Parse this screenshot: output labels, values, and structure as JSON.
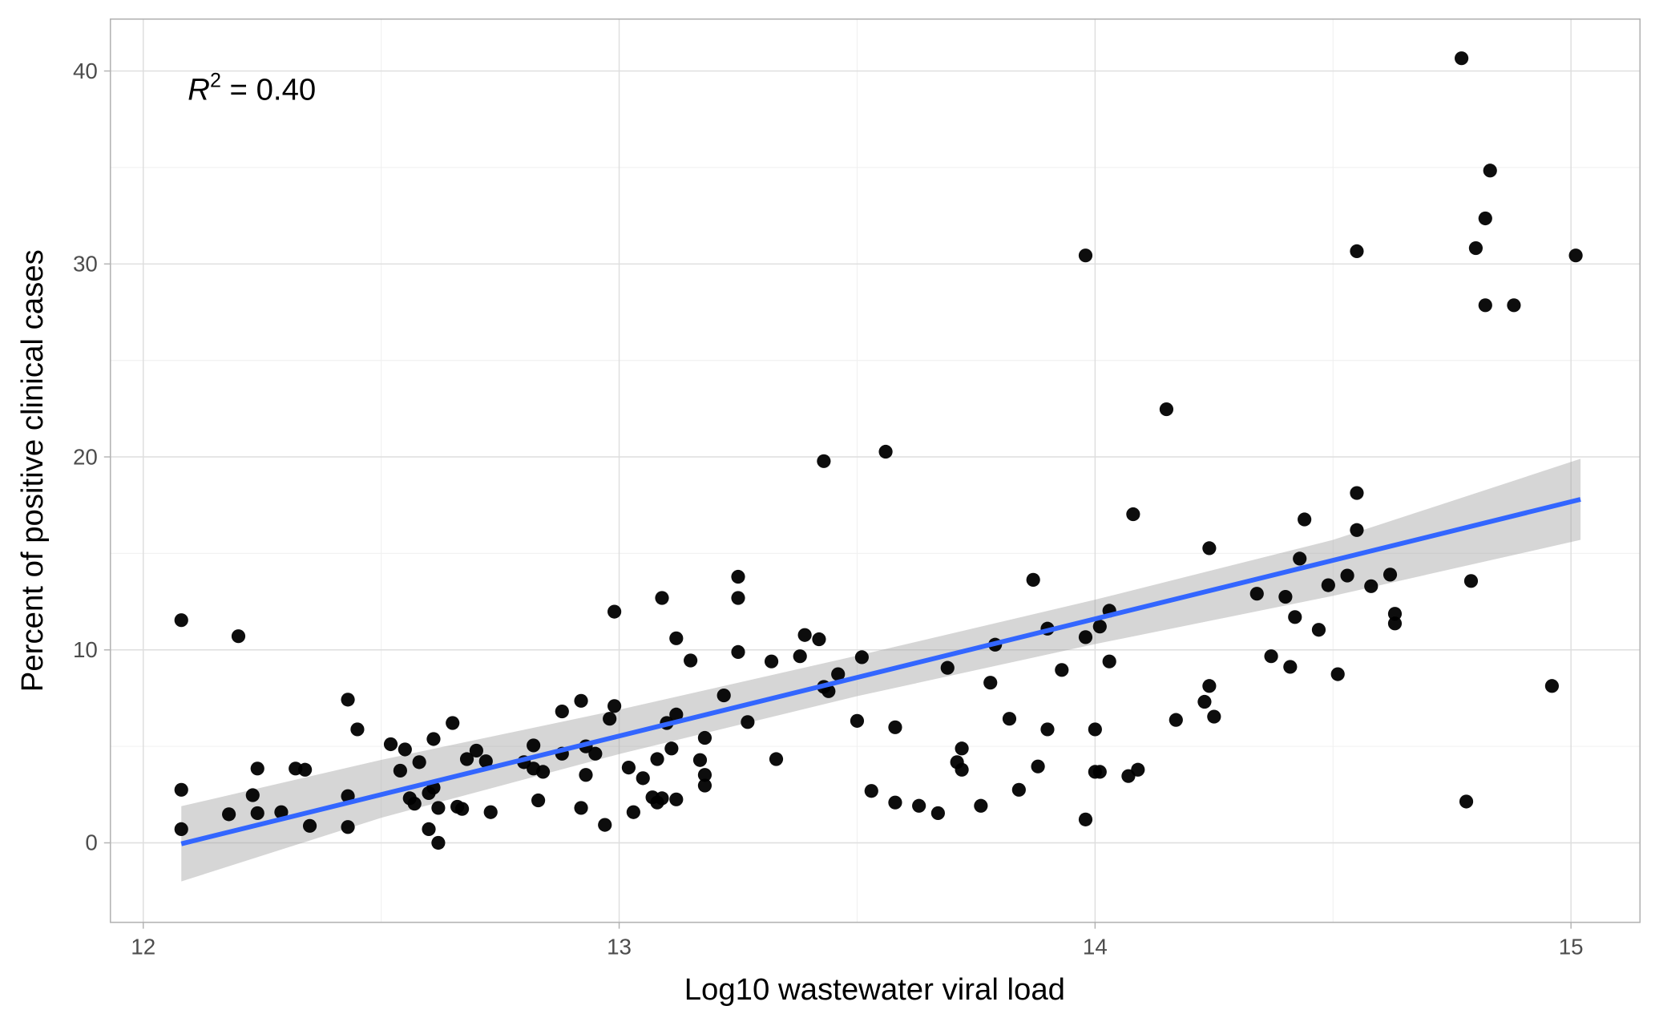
{
  "chart_data": {
    "type": "scatter",
    "x_label": "Log10 wastewater viral load",
    "y_label": "Percent of positive clinical cases",
    "annotation": {
      "base": "R",
      "sup": "2",
      "text": "= 0.40"
    },
    "color": "#000000",
    "xlim": [
      11.931,
      15.145
    ],
    "ylim": [
      -4.12,
      42.69
    ],
    "xticks": [
      12,
      13,
      14,
      15
    ],
    "yticks": [
      0,
      10,
      20,
      30,
      40
    ],
    "grid": true,
    "x": [
      12.08,
      12.08,
      12.08,
      12.2,
      12.18,
      12.23,
      12.24,
      12.24,
      12.29,
      12.32,
      12.34,
      12.35,
      12.43,
      12.43,
      12.43,
      12.45,
      12.52,
      12.54,
      12.55,
      12.56,
      12.57,
      12.58,
      12.6,
      12.6,
      12.61,
      12.61,
      12.62,
      12.62,
      12.65,
      12.66,
      12.67,
      12.68,
      12.7,
      12.72,
      12.73,
      12.8,
      12.82,
      12.82,
      12.83,
      12.84,
      12.88,
      12.88,
      12.92,
      12.92,
      12.93,
      12.93,
      12.95,
      12.97,
      12.98,
      12.99,
      12.99,
      13.02,
      13.03,
      13.05,
      13.07,
      13.08,
      13.08,
      13.09,
      13.09,
      13.1,
      13.11,
      13.12,
      13.12,
      13.12,
      13.15,
      13.17,
      13.18,
      13.18,
      13.18,
      13.22,
      13.25,
      13.25,
      13.25,
      13.27,
      13.32,
      13.33,
      13.38,
      13.39,
      13.42,
      13.43,
      13.43,
      13.44,
      13.46,
      13.5,
      13.51,
      13.53,
      13.56,
      13.58,
      13.58,
      13.63,
      13.67,
      13.69,
      13.72,
      13.71,
      13.72,
      13.76,
      13.78,
      13.79,
      13.82,
      13.84,
      13.87,
      13.88,
      13.9,
      13.9,
      13.93,
      13.98,
      13.98,
      13.98,
      14.0,
      14.0,
      14.01,
      14.01,
      14.03,
      14.03,
      14.07,
      14.08,
      14.09,
      14.15,
      14.17,
      14.23,
      14.24,
      14.24,
      14.25,
      14.34,
      14.37,
      14.4,
      14.41,
      14.42,
      14.43,
      14.44,
      14.47,
      14.49,
      14.51,
      14.53,
      14.55,
      14.55,
      14.55,
      14.58,
      14.62,
      14.63,
      14.63,
      14.77,
      14.78,
      14.79,
      14.8,
      14.82,
      14.82,
      14.83,
      14.88,
      14.96,
      15.01
    ],
    "values": [
      11.54,
      2.75,
      0.71,
      10.71,
      1.48,
      2.47,
      3.85,
      1.54,
      1.59,
      3.85,
      3.79,
      0.88,
      7.42,
      2.42,
      0.82,
      5.88,
      5.11,
      3.74,
      4.84,
      2.31,
      2.03,
      4.18,
      2.58,
      0.71,
      2.86,
      5.38,
      1.81,
      0.0,
      6.21,
      1.87,
      1.76,
      4.34,
      4.78,
      4.23,
      1.59,
      4.18,
      5.05,
      3.85,
      2.2,
      3.68,
      4.62,
      6.81,
      7.36,
      1.81,
      3.52,
      5.0,
      4.62,
      0.93,
      6.43,
      7.09,
      11.98,
      3.9,
      1.59,
      3.35,
      2.36,
      4.34,
      2.09,
      12.69,
      2.31,
      6.21,
      4.89,
      10.6,
      6.65,
      2.25,
      9.45,
      4.29,
      5.44,
      3.52,
      2.97,
      7.64,
      12.69,
      13.79,
      9.89,
      6.26,
      9.4,
      4.34,
      9.67,
      10.77,
      10.55,
      8.08,
      19.78,
      7.86,
      8.74,
      6.32,
      9.62,
      2.69,
      20.27,
      5.99,
      2.09,
      1.92,
      1.54,
      9.07,
      4.89,
      4.18,
      3.79,
      1.92,
      8.3,
      10.27,
      6.43,
      2.75,
      13.63,
      3.96,
      11.1,
      5.88,
      8.96,
      30.44,
      10.66,
      1.21,
      3.68,
      5.88,
      11.21,
      3.68,
      9.4,
      12.03,
      3.46,
      17.03,
      3.79,
      22.47,
      6.37,
      7.31,
      15.27,
      8.13,
      6.54,
      12.91,
      9.67,
      12.75,
      9.12,
      11.7,
      14.73,
      16.76,
      11.04,
      13.35,
      8.74,
      13.85,
      30.66,
      16.21,
      18.13,
      13.3,
      13.9,
      11.87,
      11.37,
      40.66,
      2.14,
      13.57,
      30.82,
      32.36,
      27.86,
      34.84,
      27.86,
      8.13,
      30.44
    ],
    "fit": {
      "x": [
        12.08,
        15.02
      ],
      "values": [
        -0.05,
        17.8
      ],
      "color": "#3366ff"
    },
    "band": {
      "x": [
        12.08,
        12.5,
        13.0,
        13.5,
        14.0,
        14.5,
        15.02
      ],
      "lower": [
        -2.0,
        1.3,
        4.6,
        7.6,
        10.3,
        12.8,
        15.7
      ],
      "upper": [
        1.9,
        4.3,
        6.9,
        9.7,
        12.6,
        15.7,
        19.9
      ],
      "color": "#999999"
    }
  }
}
